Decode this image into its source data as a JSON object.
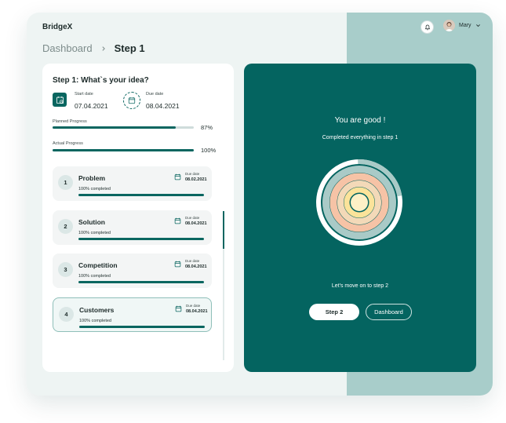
{
  "app": {
    "brand": "BridgeX"
  },
  "header": {
    "user_name": "Mary"
  },
  "breadcrumb": {
    "parent": "Dashboard",
    "current": "Step 1"
  },
  "left": {
    "title": "Step 1: What`s your idea?",
    "start_label": "Start date",
    "start_value": "07.04.2021",
    "due_label": "Due date",
    "due_value": "08.04.2021",
    "planned_label": "Planned  Progress",
    "planned_pct": "87%",
    "planned_value": 0.87,
    "actual_label": "Actual Progress",
    "actual_pct": "100%",
    "actual_value": 1.0,
    "steps": [
      {
        "num": "1",
        "title": "Problem",
        "sub": "100% completed",
        "due_label": "Due date",
        "due": "08.02.2021"
      },
      {
        "num": "2",
        "title": "Solution",
        "sub": "100% completed",
        "due_label": "Due date",
        "due": "08.04.2021"
      },
      {
        "num": "3",
        "title": "Competition",
        "sub": "100% completed",
        "due_label": "Due date",
        "due": "08.04.2021"
      },
      {
        "num": "4",
        "title": "Customers",
        "sub": "100% completed",
        "due_label": "Due date",
        "due": "08.04.2021"
      }
    ]
  },
  "right": {
    "title": "You are good !",
    "subtitle": "Completed everything in step 1",
    "move_text": "Let's move on to step 2",
    "btn_primary": "Step 2",
    "btn_secondary": "Dashboard"
  },
  "colors": {
    "teal": "#046460",
    "ring_outer": "#ffffff",
    "ring_2": "#a9cac7",
    "ring_3": "#f6c3a6",
    "ring_4": "#f3d9b8",
    "ring_5": "#fbe39a",
    "ring_6": "#fdf0c6"
  },
  "icons": [
    "calendar-check-icon",
    "calendar-icon",
    "bell-icon",
    "chevron-down-icon",
    "chevron-right-icon"
  ]
}
